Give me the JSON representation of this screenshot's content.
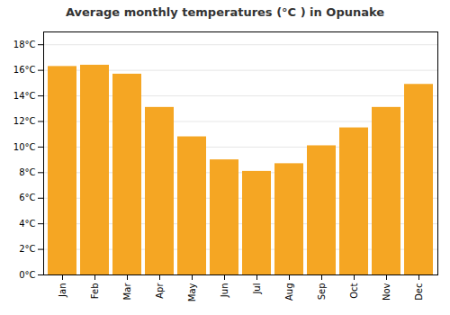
{
  "chart_data": {
    "type": "bar",
    "title": "Average monthly temperatures (°C ) in Opunake",
    "categories": [
      "Jan",
      "Feb",
      "Mar",
      "Apr",
      "May",
      "Jun",
      "Jul",
      "Aug",
      "Sep",
      "Oct",
      "Nov",
      "Dec"
    ],
    "values": [
      16.3,
      16.4,
      15.7,
      13.1,
      10.8,
      9.0,
      8.1,
      8.7,
      10.1,
      11.5,
      13.1,
      14.9
    ],
    "color": "#F5A623",
    "ylim": [
      0,
      19
    ],
    "yticks": [
      {
        "value": 0,
        "label": "0°C"
      },
      {
        "value": 2,
        "label": "2°C"
      },
      {
        "value": 4,
        "label": "4°C"
      },
      {
        "value": 6,
        "label": "6°C"
      },
      {
        "value": 8,
        "label": "8°C"
      },
      {
        "value": 10,
        "label": "10°C"
      },
      {
        "value": 12,
        "label": "12°C"
      },
      {
        "value": 14,
        "label": "14°C"
      },
      {
        "value": 16,
        "label": "16°C"
      },
      {
        "value": 18,
        "label": "18°C"
      }
    ],
    "grid": true
  }
}
